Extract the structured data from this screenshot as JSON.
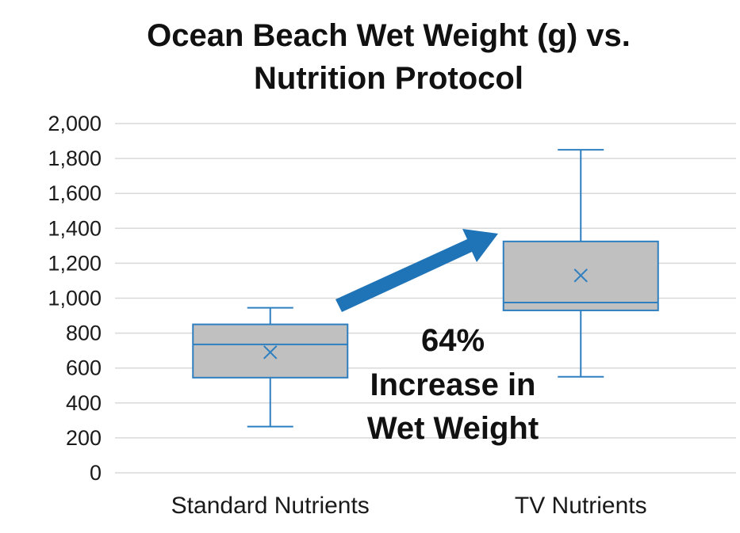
{
  "chart_data": {
    "type": "box",
    "title_lines": [
      "Ocean Beach Wet Weight (g) vs.",
      "Nutrition Protocol"
    ],
    "ylim": [
      0,
      2000
    ],
    "yticks": [
      0,
      200,
      400,
      600,
      800,
      1000,
      1200,
      1400,
      1600,
      1800,
      2000
    ],
    "ytick_labels": [
      "0",
      "200",
      "400",
      "600",
      "800",
      "1,000",
      "1,200",
      "1,400",
      "1,600",
      "1,800",
      "2,000"
    ],
    "grid": true,
    "categories": [
      "Standard Nutrients",
      "TV Nutrients"
    ],
    "boxes": [
      {
        "category": "Standard Nutrients",
        "min": 265,
        "q1": 545,
        "median": 735,
        "q3": 850,
        "max": 945,
        "mean": 690
      },
      {
        "category": "TV Nutrients",
        "min": 550,
        "q1": 930,
        "median": 975,
        "q3": 1325,
        "max": 1850,
        "mean": 1130
      }
    ],
    "annotation": {
      "lines": [
        "64%",
        "Increase in",
        "Wet Weight"
      ],
      "arrow": "from Standard Nutrients box toward TV Nutrients box"
    },
    "colors": {
      "box_fill": "#c0c0c0",
      "box_stroke": "#2e7fc0",
      "arrow": "#1f73b7",
      "grid": "#d9d9d9"
    }
  }
}
